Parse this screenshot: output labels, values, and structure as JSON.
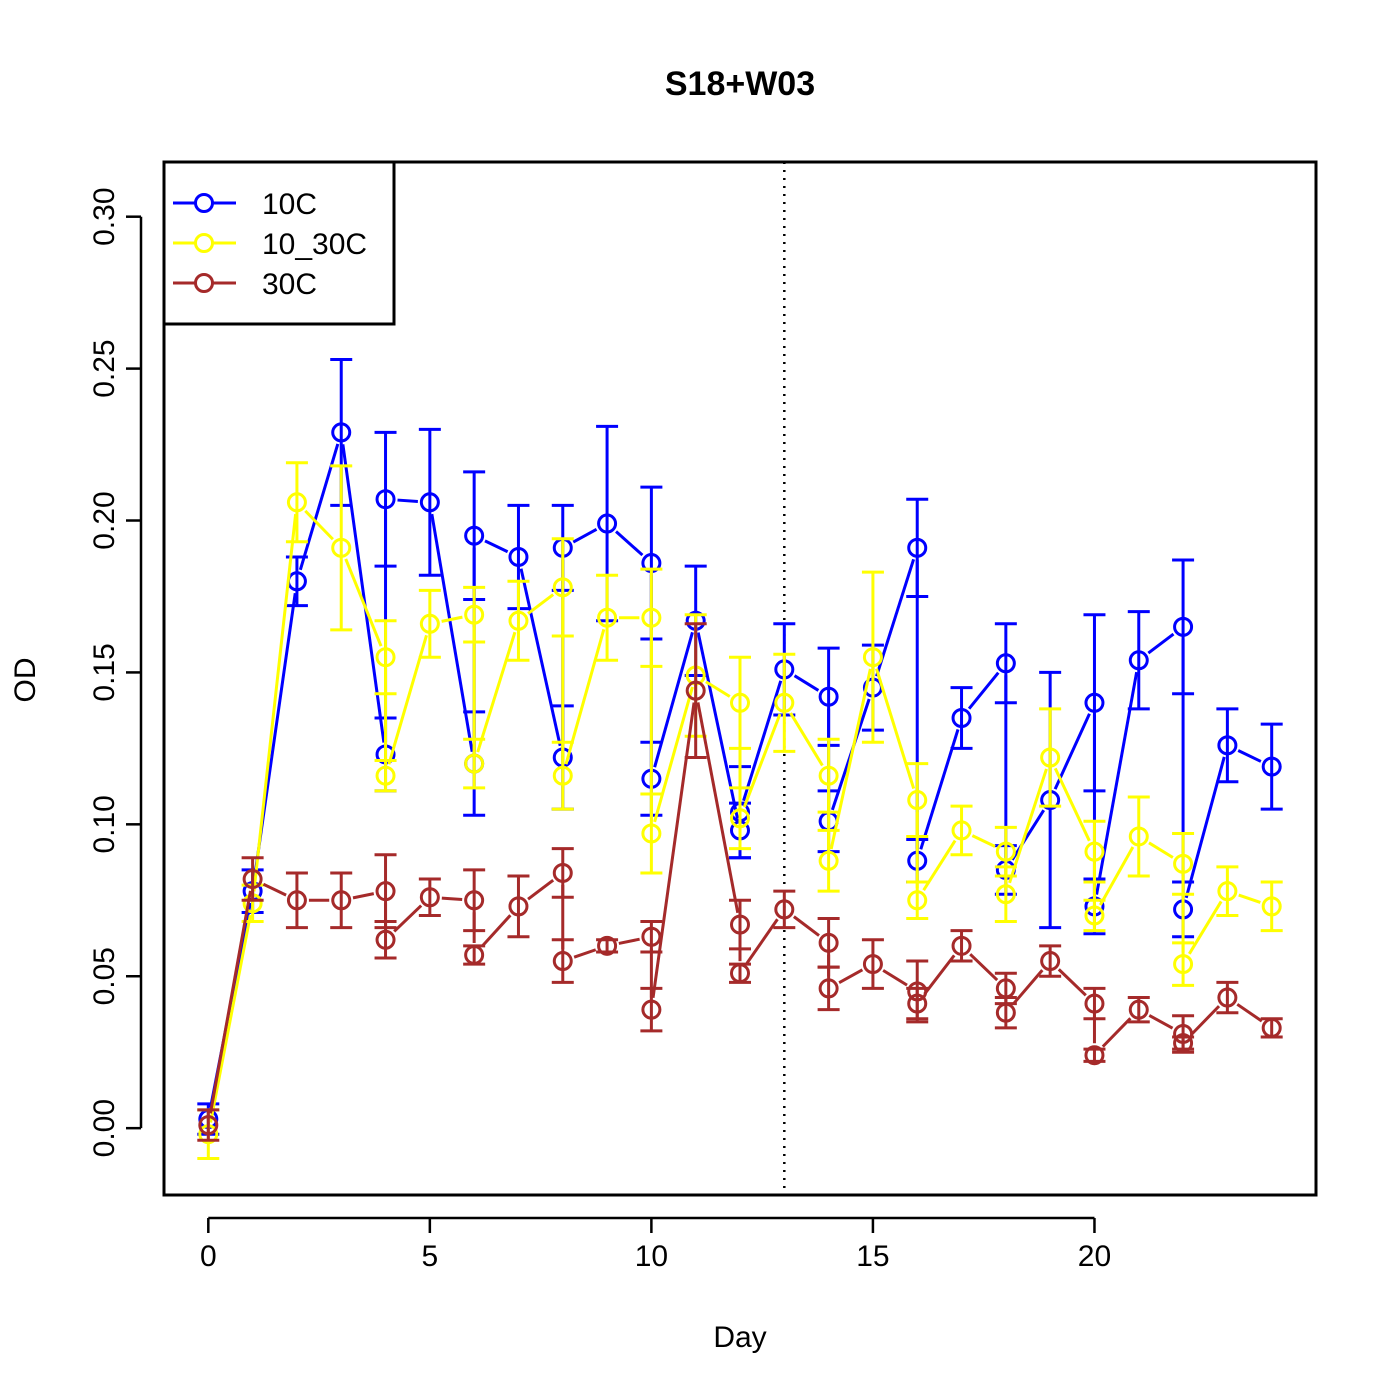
{
  "chart_data": {
    "type": "line",
    "title": "S18+W03",
    "xlabel": "Day",
    "ylabel": "OD",
    "xlim": [
      -1,
      25
    ],
    "ylim": [
      -0.022,
      0.318
    ],
    "xticks": [
      0,
      5,
      10,
      15,
      20
    ],
    "yticks": [
      0.0,
      0.05,
      0.1,
      0.15,
      0.2,
      0.25,
      0.3
    ],
    "ytick_labels": [
      "0.00",
      "0.05",
      "0.10",
      "0.15",
      "0.20",
      "0.25",
      "0.30"
    ],
    "vline": 13,
    "legend_position": "top-left",
    "series": [
      {
        "name": "10C",
        "color": "#0000ff",
        "points": [
          {
            "x": 0,
            "y": 0.003,
            "err": 0.005
          },
          {
            "x": 1,
            "y": 0.078,
            "err": 0.007
          },
          {
            "x": 2,
            "y": 0.18,
            "err": 0.008
          },
          {
            "x": 3,
            "y": 0.229,
            "err": 0.024
          },
          {
            "x": 4,
            "y": 0.123,
            "err": 0.012
          },
          {
            "x": 4,
            "y": 0.207,
            "err": 0.022
          },
          {
            "x": 5,
            "y": 0.206,
            "err": 0.024
          },
          {
            "x": 6,
            "y": 0.12,
            "err": 0.017
          },
          {
            "x": 6,
            "y": 0.195,
            "err": 0.021
          },
          {
            "x": 7,
            "y": 0.188,
            "err": 0.017
          },
          {
            "x": 8,
            "y": 0.122,
            "err": 0.017
          },
          {
            "x": 8,
            "y": 0.191,
            "err": 0.014
          },
          {
            "x": 9,
            "y": 0.199,
            "err": 0.032
          },
          {
            "x": 10,
            "y": 0.186,
            "err": 0.025
          },
          {
            "x": 10,
            "y": 0.115,
            "err": 0.012
          },
          {
            "x": 11,
            "y": 0.167,
            "err": 0.018
          },
          {
            "x": 12,
            "y": 0.098,
            "err": 0.009
          },
          {
            "x": 12,
            "y": 0.104,
            "err": 0.015
          },
          {
            "x": 13,
            "y": 0.151,
            "err": 0.015
          },
          {
            "x": 14,
            "y": 0.142,
            "err": 0.016
          },
          {
            "x": 14,
            "y": 0.101,
            "err": 0.01
          },
          {
            "x": 15,
            "y": 0.145,
            "err": 0.014
          },
          {
            "x": 16,
            "y": 0.191,
            "err": 0.016
          },
          {
            "x": 16,
            "y": 0.088,
            "err": 0.007
          },
          {
            "x": 17,
            "y": 0.135,
            "err": 0.01
          },
          {
            "x": 18,
            "y": 0.153,
            "err": 0.013
          },
          {
            "x": 18,
            "y": 0.085,
            "err": 0.008
          },
          {
            "x": 19,
            "y": 0.108,
            "err": 0.042
          },
          {
            "x": 20,
            "y": 0.14,
            "err": 0.029
          },
          {
            "x": 20,
            "y": 0.073,
            "err": 0.009
          },
          {
            "x": 21,
            "y": 0.154,
            "err": 0.016
          },
          {
            "x": 22,
            "y": 0.165,
            "err": 0.022
          },
          {
            "x": 22,
            "y": 0.072,
            "err": 0.009
          },
          {
            "x": 23,
            "y": 0.126,
            "err": 0.012
          },
          {
            "x": 24,
            "y": 0.119,
            "err": 0.014
          }
        ]
      },
      {
        "name": "10_30C",
        "color": "#ffff00",
        "points": [
          {
            "x": 0,
            "y": -0.002,
            "err": 0.008
          },
          {
            "x": 1,
            "y": 0.074,
            "err": 0.006
          },
          {
            "x": 2,
            "y": 0.206,
            "err": 0.013
          },
          {
            "x": 3,
            "y": 0.191,
            "err": 0.027
          },
          {
            "x": 4,
            "y": 0.155,
            "err": 0.012
          },
          {
            "x": 4,
            "y": 0.116,
            "err": 0.005
          },
          {
            "x": 5,
            "y": 0.166,
            "err": 0.011
          },
          {
            "x": 6,
            "y": 0.169,
            "err": 0.009
          },
          {
            "x": 6,
            "y": 0.12,
            "err": 0.008
          },
          {
            "x": 7,
            "y": 0.167,
            "err": 0.013
          },
          {
            "x": 8,
            "y": 0.178,
            "err": 0.016
          },
          {
            "x": 8,
            "y": 0.116,
            "err": 0.011
          },
          {
            "x": 9,
            "y": 0.168,
            "err": 0.014
          },
          {
            "x": 10,
            "y": 0.168,
            "err": 0.016
          },
          {
            "x": 10,
            "y": 0.097,
            "err": 0.013
          },
          {
            "x": 11,
            "y": 0.149,
            "err": 0.02
          },
          {
            "x": 12,
            "y": 0.14,
            "err": 0.015
          },
          {
            "x": 12,
            "y": 0.102,
            "err": 0.01
          },
          {
            "x": 13,
            "y": 0.14,
            "err": 0.016
          },
          {
            "x": 14,
            "y": 0.116,
            "err": 0.012
          },
          {
            "x": 14,
            "y": 0.088,
            "err": 0.01
          },
          {
            "x": 15,
            "y": 0.155,
            "err": 0.028
          },
          {
            "x": 16,
            "y": 0.108,
            "err": 0.012
          },
          {
            "x": 16,
            "y": 0.075,
            "err": 0.006
          },
          {
            "x": 17,
            "y": 0.098,
            "err": 0.008
          },
          {
            "x": 18,
            "y": 0.091,
            "err": 0.008
          },
          {
            "x": 18,
            "y": 0.077,
            "err": 0.009
          },
          {
            "x": 19,
            "y": 0.122,
            "err": 0.016
          },
          {
            "x": 20,
            "y": 0.091,
            "err": 0.01
          },
          {
            "x": 20,
            "y": 0.07,
            "err": 0.005
          },
          {
            "x": 21,
            "y": 0.096,
            "err": 0.013
          },
          {
            "x": 22,
            "y": 0.087,
            "err": 0.01
          },
          {
            "x": 22,
            "y": 0.054,
            "err": 0.007
          },
          {
            "x": 23,
            "y": 0.078,
            "err": 0.008
          },
          {
            "x": 24,
            "y": 0.073,
            "err": 0.008
          }
        ]
      },
      {
        "name": "30C",
        "color": "#a52a2a",
        "points": [
          {
            "x": 0,
            "y": 0.001,
            "err": 0.005
          },
          {
            "x": 1,
            "y": 0.082,
            "err": 0.007
          },
          {
            "x": 2,
            "y": 0.075,
            "err": 0.009
          },
          {
            "x": 3,
            "y": 0.075,
            "err": 0.009
          },
          {
            "x": 4,
            "y": 0.078,
            "err": 0.012
          },
          {
            "x": 4,
            "y": 0.062,
            "err": 0.006
          },
          {
            "x": 5,
            "y": 0.076,
            "err": 0.006
          },
          {
            "x": 6,
            "y": 0.075,
            "err": 0.01
          },
          {
            "x": 6,
            "y": 0.057,
            "err": 0.003
          },
          {
            "x": 7,
            "y": 0.073,
            "err": 0.01
          },
          {
            "x": 8,
            "y": 0.084,
            "err": 0.008
          },
          {
            "x": 8,
            "y": 0.055,
            "err": 0.007
          },
          {
            "x": 9,
            "y": 0.06,
            "err": 0.002
          },
          {
            "x": 10,
            "y": 0.063,
            "err": 0.005
          },
          {
            "x": 10,
            "y": 0.039,
            "err": 0.007
          },
          {
            "x": 11,
            "y": 0.144,
            "err": 0.022
          },
          {
            "x": 12,
            "y": 0.067,
            "err": 0.008
          },
          {
            "x": 12,
            "y": 0.051,
            "err": 0.003
          },
          {
            "x": 13,
            "y": 0.072,
            "err": 0.006
          },
          {
            "x": 14,
            "y": 0.061,
            "err": 0.008
          },
          {
            "x": 14,
            "y": 0.046,
            "err": 0.007
          },
          {
            "x": 15,
            "y": 0.054,
            "err": 0.008
          },
          {
            "x": 16,
            "y": 0.045,
            "err": 0.01
          },
          {
            "x": 16,
            "y": 0.041,
            "err": 0.005
          },
          {
            "x": 17,
            "y": 0.06,
            "err": 0.005
          },
          {
            "x": 18,
            "y": 0.046,
            "err": 0.005
          },
          {
            "x": 18,
            "y": 0.038,
            "err": 0.005
          },
          {
            "x": 19,
            "y": 0.055,
            "err": 0.005
          },
          {
            "x": 20,
            "y": 0.041,
            "err": 0.005
          },
          {
            "x": 20,
            "y": 0.024,
            "err": 0.002
          },
          {
            "x": 21,
            "y": 0.039,
            "err": 0.004
          },
          {
            "x": 22,
            "y": 0.031,
            "err": 0.006
          },
          {
            "x": 22,
            "y": 0.028,
            "err": 0.002
          },
          {
            "x": 23,
            "y": 0.043,
            "err": 0.005
          },
          {
            "x": 24,
            "y": 0.033,
            "err": 0.003
          }
        ]
      }
    ]
  }
}
